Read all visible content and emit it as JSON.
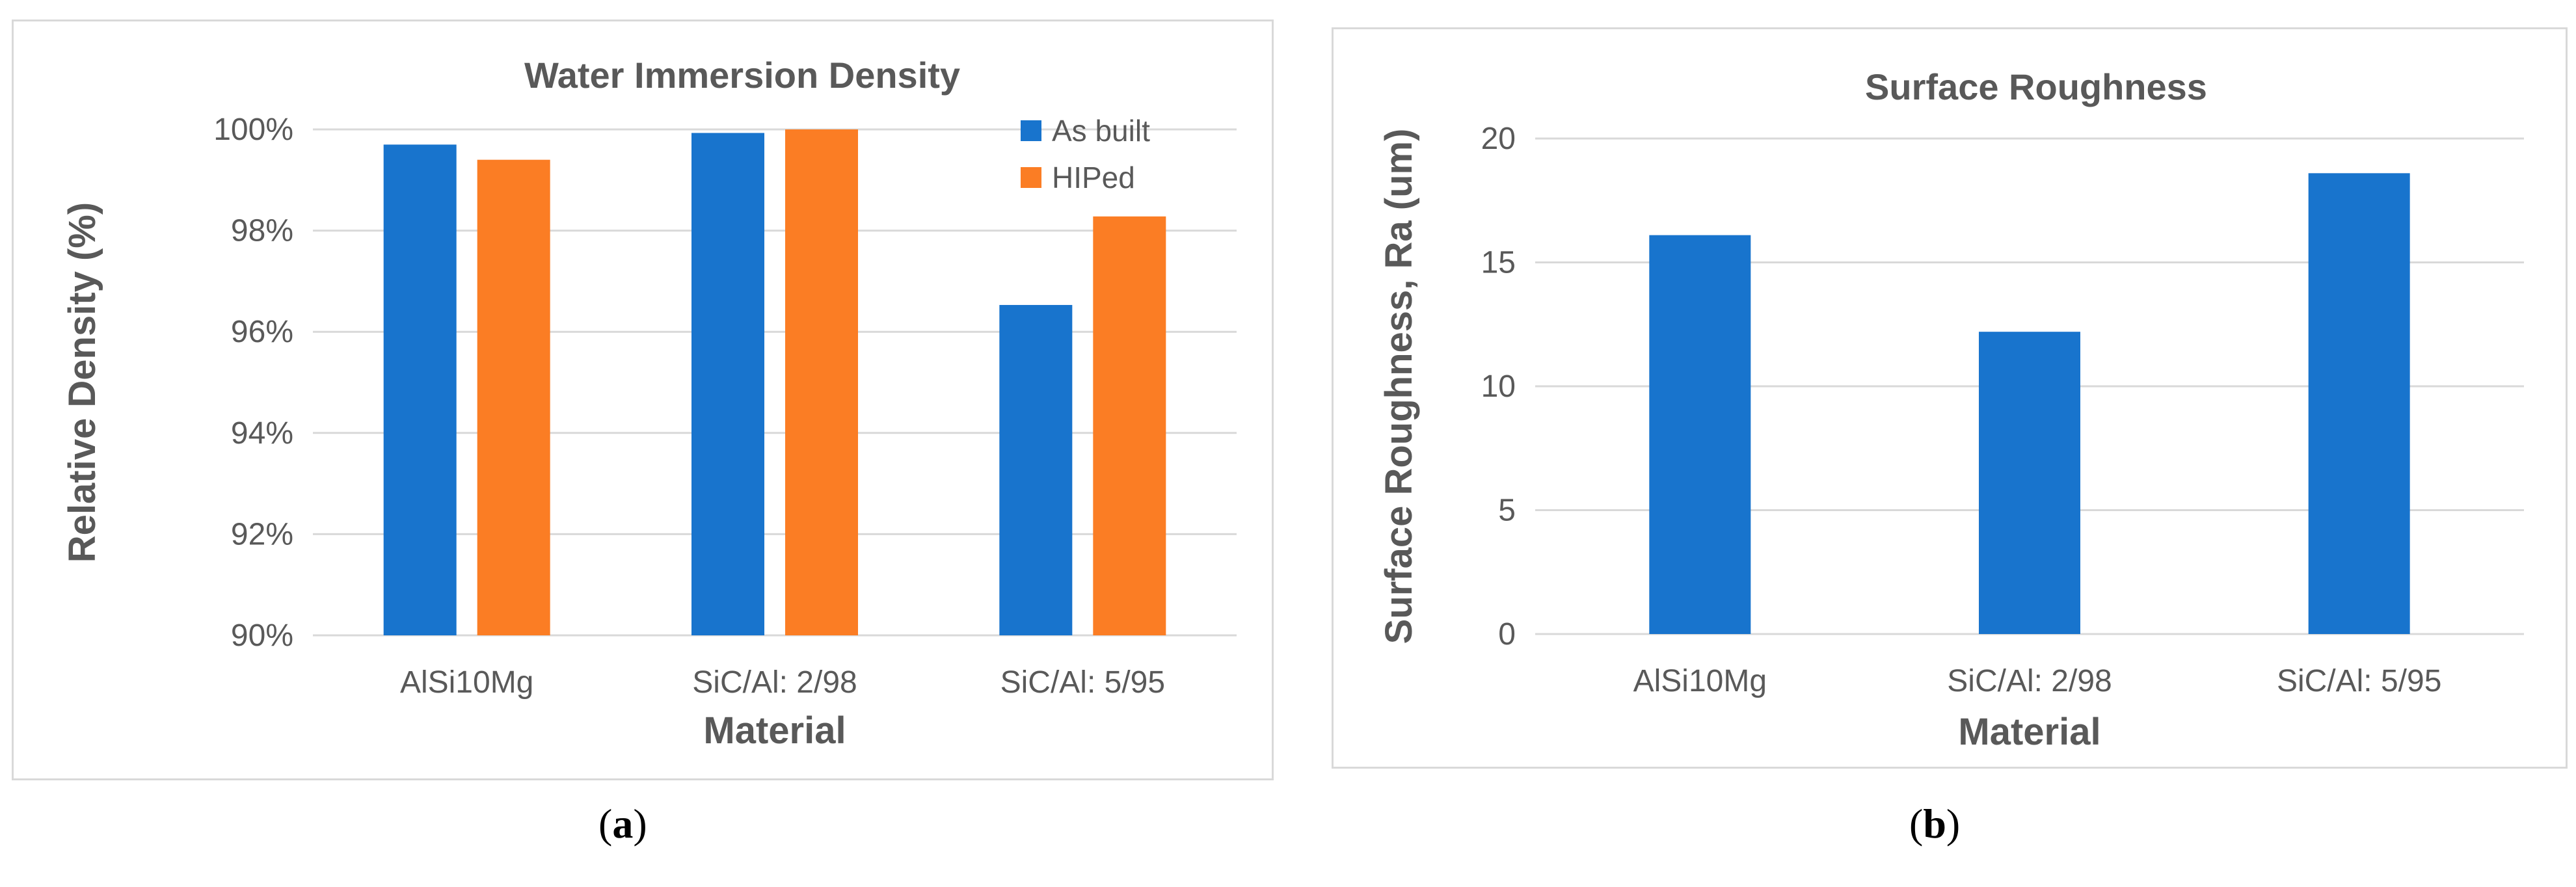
{
  "colors": {
    "as_built": "#1874cd",
    "hiped": "#fb7d24",
    "grid": "#d9d9d9",
    "text": "#595959"
  },
  "captions": {
    "a": {
      "open": "(",
      "letter": "a",
      "close": ")"
    },
    "b": {
      "open": "(",
      "letter": "b",
      "close": ")"
    }
  },
  "chart_data": [
    {
      "type": "bar",
      "title": "Water Immersion Density",
      "xlabel": "Material",
      "ylabel": "Relative Density (%)",
      "categories": [
        "AlSi10Mg",
        "SiC/Al: 2/98",
        "SiC/Al: 5/95"
      ],
      "series": [
        {
          "name": "As built",
          "values": [
            99.7,
            99.93,
            96.53
          ]
        },
        {
          "name": "HIPed",
          "values": [
            99.4,
            100.0,
            98.28
          ]
        }
      ],
      "ylim": [
        90,
        100
      ],
      "yticks": [
        90,
        92,
        94,
        96,
        98,
        100
      ],
      "ytick_labels": [
        "90%",
        "92%",
        "94%",
        "96%",
        "98%",
        "100%"
      ],
      "grid": true,
      "legend": "top-right"
    },
    {
      "type": "bar",
      "title": "Surface Roughness",
      "xlabel": "Material",
      "ylabel": "Surface Roughness, Ra (um)",
      "categories": [
        "AlSi10Mg",
        "SiC/Al: 2/98",
        "SiC/Al: 5/95"
      ],
      "series": [
        {
          "name": "Surface Roughness",
          "values": [
            16.1,
            12.2,
            18.6
          ]
        }
      ],
      "ylim": [
        0,
        20
      ],
      "yticks": [
        0,
        5,
        10,
        15,
        20
      ],
      "ytick_labels": [
        "0",
        "5",
        "10",
        "15",
        "20"
      ],
      "grid": true,
      "legend": "none"
    }
  ]
}
